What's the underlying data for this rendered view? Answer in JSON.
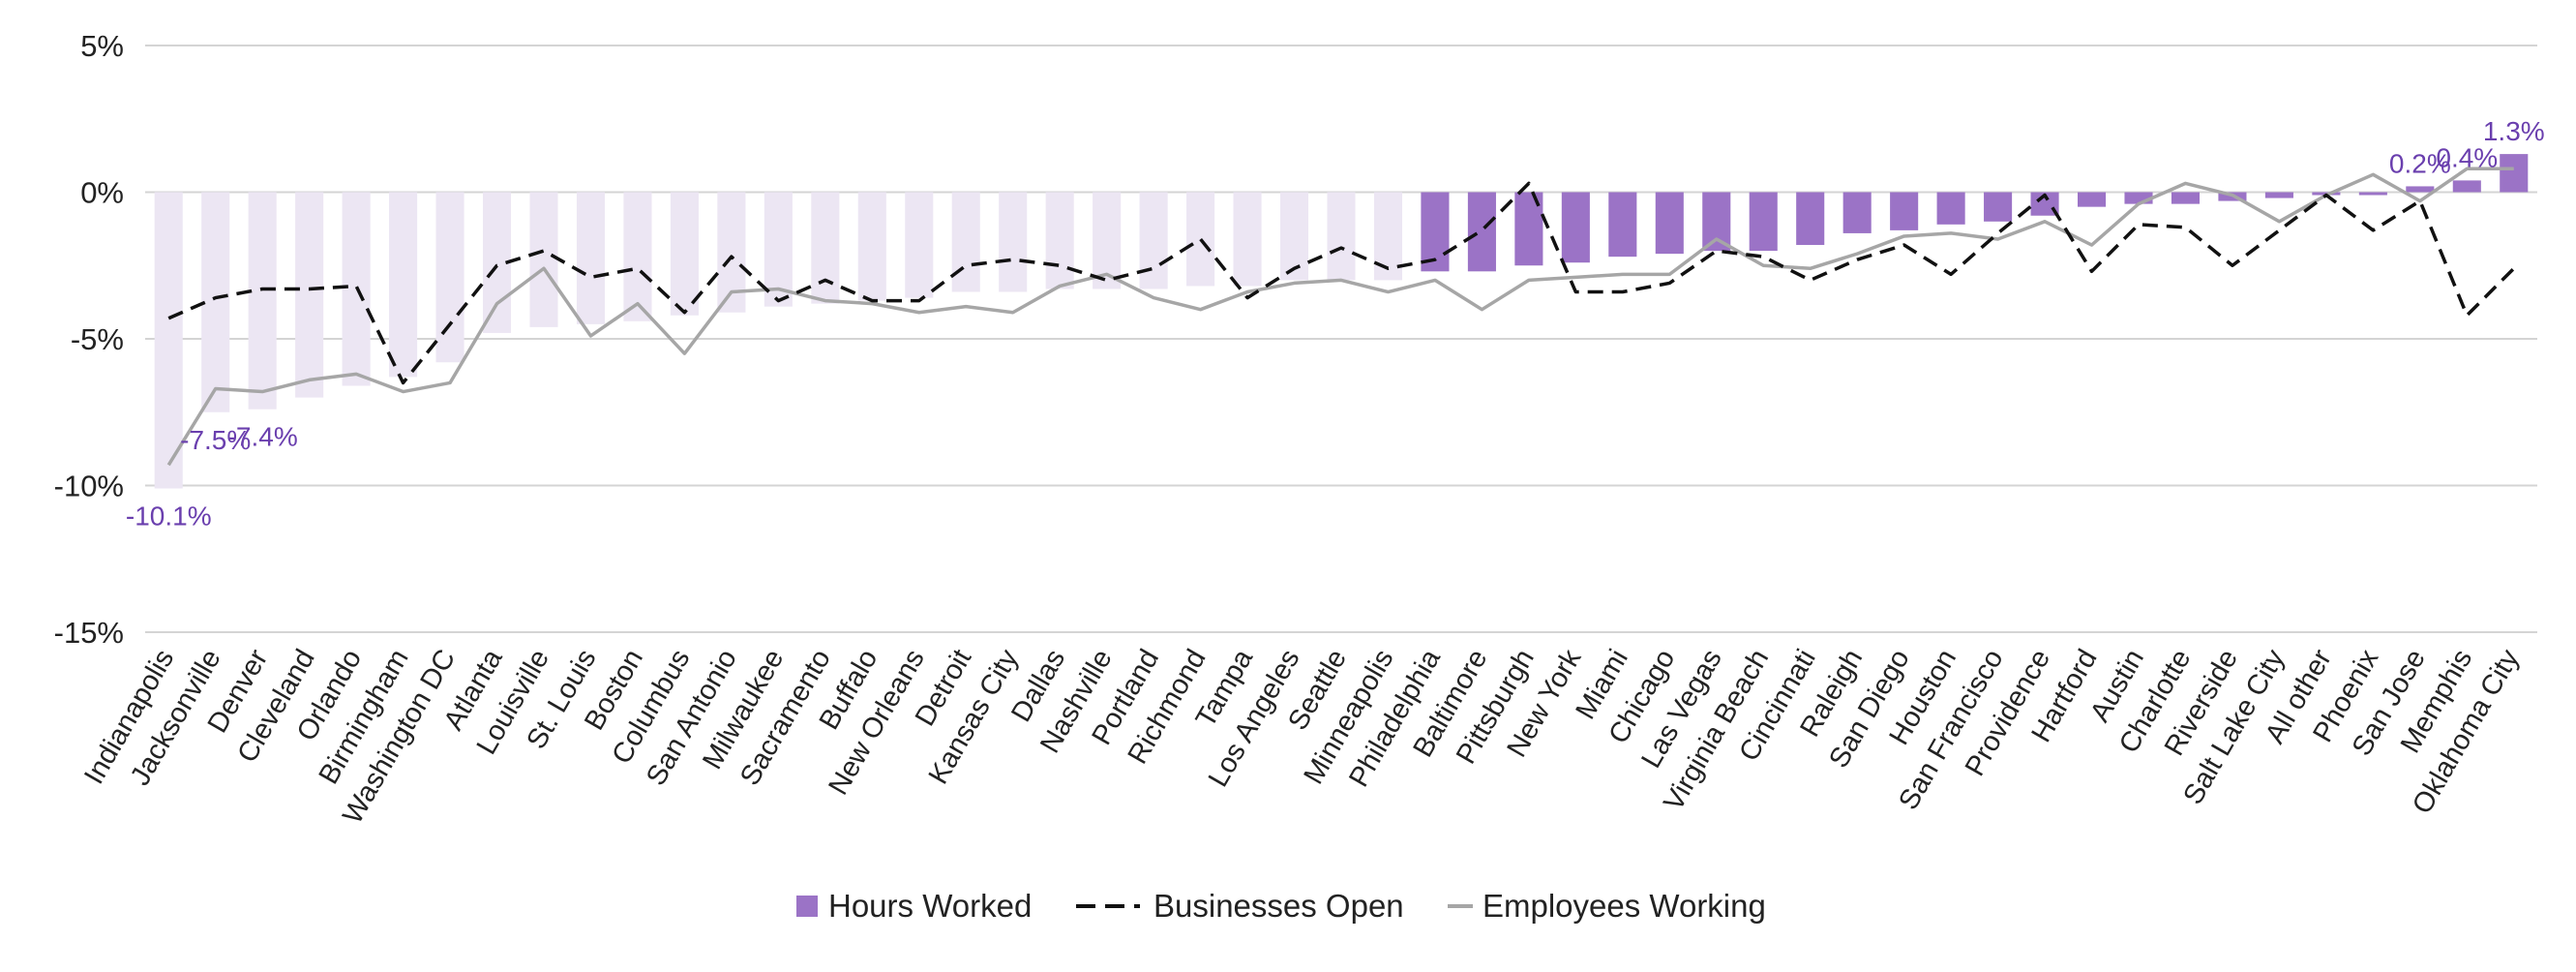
{
  "chart_data": {
    "type": "bar",
    "title": "",
    "xlabel": "",
    "ylabel": "",
    "ylim": [
      -15,
      5
    ],
    "yticks": [
      {
        "value": 5,
        "label": "5%"
      },
      {
        "value": 0,
        "label": "0%"
      },
      {
        "value": -5,
        "label": "-5%"
      },
      {
        "value": -10,
        "label": "-10%"
      },
      {
        "value": -15,
        "label": "-15%"
      }
    ],
    "grid": true,
    "legend_position": "bottom-center",
    "highlight_from_index": 27,
    "colors": {
      "bar_highlight": "#9b73c6",
      "bar_faded": "#ece6f3",
      "businesses_open": "#111111",
      "employees_working": "#a6a6a6",
      "gridline": "#d4d4d4",
      "data_label": "#6a3fae"
    },
    "categories": [
      "Indianapolis",
      "Jacksonville",
      "Denver",
      "Cleveland",
      "Orlando",
      "Birmingham",
      "Washington DC",
      "Atlanta",
      "Louisville",
      "St. Louis",
      "Boston",
      "Columbus",
      "San Antonio",
      "Milwaukee",
      "Sacramento",
      "Buffalo",
      "New Orleans",
      "Detroit",
      "Kansas City",
      "Dallas",
      "Nashville",
      "Portland",
      "Richmond",
      "Tampa",
      "Los Angeles",
      "Seattle",
      "Minneapolis",
      "Philadelphia",
      "Baltimore",
      "Pittsburgh",
      "New York",
      "Miami",
      "Chicago",
      "Las Vegas",
      "Virginia Beach",
      "Cincinnati",
      "Raleigh",
      "San Diego",
      "Houston",
      "San Francisco",
      "Providence",
      "Hartford",
      "Austin",
      "Charlotte",
      "Riverside",
      "Salt Lake City",
      "All other",
      "Phoenix",
      "San Jose",
      "Memphis",
      "Oklahoma City"
    ],
    "series": [
      {
        "name": "Hours Worked",
        "kind": "bar",
        "values": [
          -10.1,
          -7.5,
          -7.4,
          -7.0,
          -6.6,
          -6.3,
          -5.8,
          -4.8,
          -4.6,
          -4.5,
          -4.4,
          -4.2,
          -4.1,
          -3.9,
          -3.8,
          -3.7,
          -3.6,
          -3.4,
          -3.4,
          -3.3,
          -3.3,
          -3.3,
          -3.2,
          -3.2,
          -3.0,
          -3.0,
          -3.0,
          -2.7,
          -2.7,
          -2.5,
          -2.4,
          -2.2,
          -2.1,
          -2.0,
          -2.0,
          -1.8,
          -1.4,
          -1.3,
          -1.1,
          -1.0,
          -0.8,
          -0.5,
          -0.4,
          -0.4,
          -0.3,
          -0.2,
          -0.1,
          -0.1,
          0.2,
          0.4,
          1.3
        ]
      },
      {
        "name": "Businesses Open",
        "kind": "line-dashed",
        "values": [
          -4.3,
          -3.6,
          -3.3,
          -3.3,
          -3.2,
          -6.5,
          -4.5,
          -2.5,
          -2.0,
          -2.9,
          -2.6,
          -4.1,
          -2.2,
          -3.7,
          -3.0,
          -3.7,
          -3.7,
          -2.5,
          -2.3,
          -2.5,
          -3.0,
          -2.6,
          -1.6,
          -3.6,
          -2.6,
          -1.9,
          -2.6,
          -2.3,
          -1.3,
          0.3,
          -3.4,
          -3.4,
          -3.1,
          -2.0,
          -2.2,
          -3.0,
          -2.3,
          -1.8,
          -2.8,
          -1.4,
          -0.1,
          -2.7,
          -1.1,
          -1.2,
          -2.5,
          -1.3,
          -0.1,
          -1.3,
          -0.3,
          -4.2,
          -2.6
        ]
      },
      {
        "name": "Employees Working",
        "kind": "line",
        "values": [
          -9.3,
          -6.7,
          -6.8,
          -6.4,
          -6.2,
          -6.8,
          -6.5,
          -3.8,
          -2.6,
          -4.9,
          -3.8,
          -5.5,
          -3.4,
          -3.3,
          -3.7,
          -3.8,
          -4.1,
          -3.9,
          -4.1,
          -3.2,
          -2.8,
          -3.6,
          -4.0,
          -3.4,
          -3.1,
          -3.0,
          -3.4,
          -3.0,
          -4.0,
          -3.0,
          -2.9,
          -2.8,
          -2.8,
          -1.6,
          -2.5,
          -2.6,
          -2.1,
          -1.5,
          -1.4,
          -1.6,
          -1.0,
          -1.8,
          -0.4,
          0.3,
          -0.1,
          -1.0,
          -0.1,
          0.6,
          -0.3,
          0.8,
          0.8
        ]
      }
    ],
    "data_labels": [
      {
        "index": 0,
        "text": "-10.1%"
      },
      {
        "index": 1,
        "text": "-7.5%"
      },
      {
        "index": 2,
        "text": "-7.4%"
      },
      {
        "index": 48,
        "text": "0.2%"
      },
      {
        "index": 49,
        "text": "0.4%"
      },
      {
        "index": 50,
        "text": "1.3%"
      }
    ],
    "legend": [
      {
        "name": "Hours Worked",
        "symbol": "square"
      },
      {
        "name": "Businesses Open",
        "symbol": "dashed-line"
      },
      {
        "name": "Employees Working",
        "symbol": "line"
      }
    ]
  }
}
